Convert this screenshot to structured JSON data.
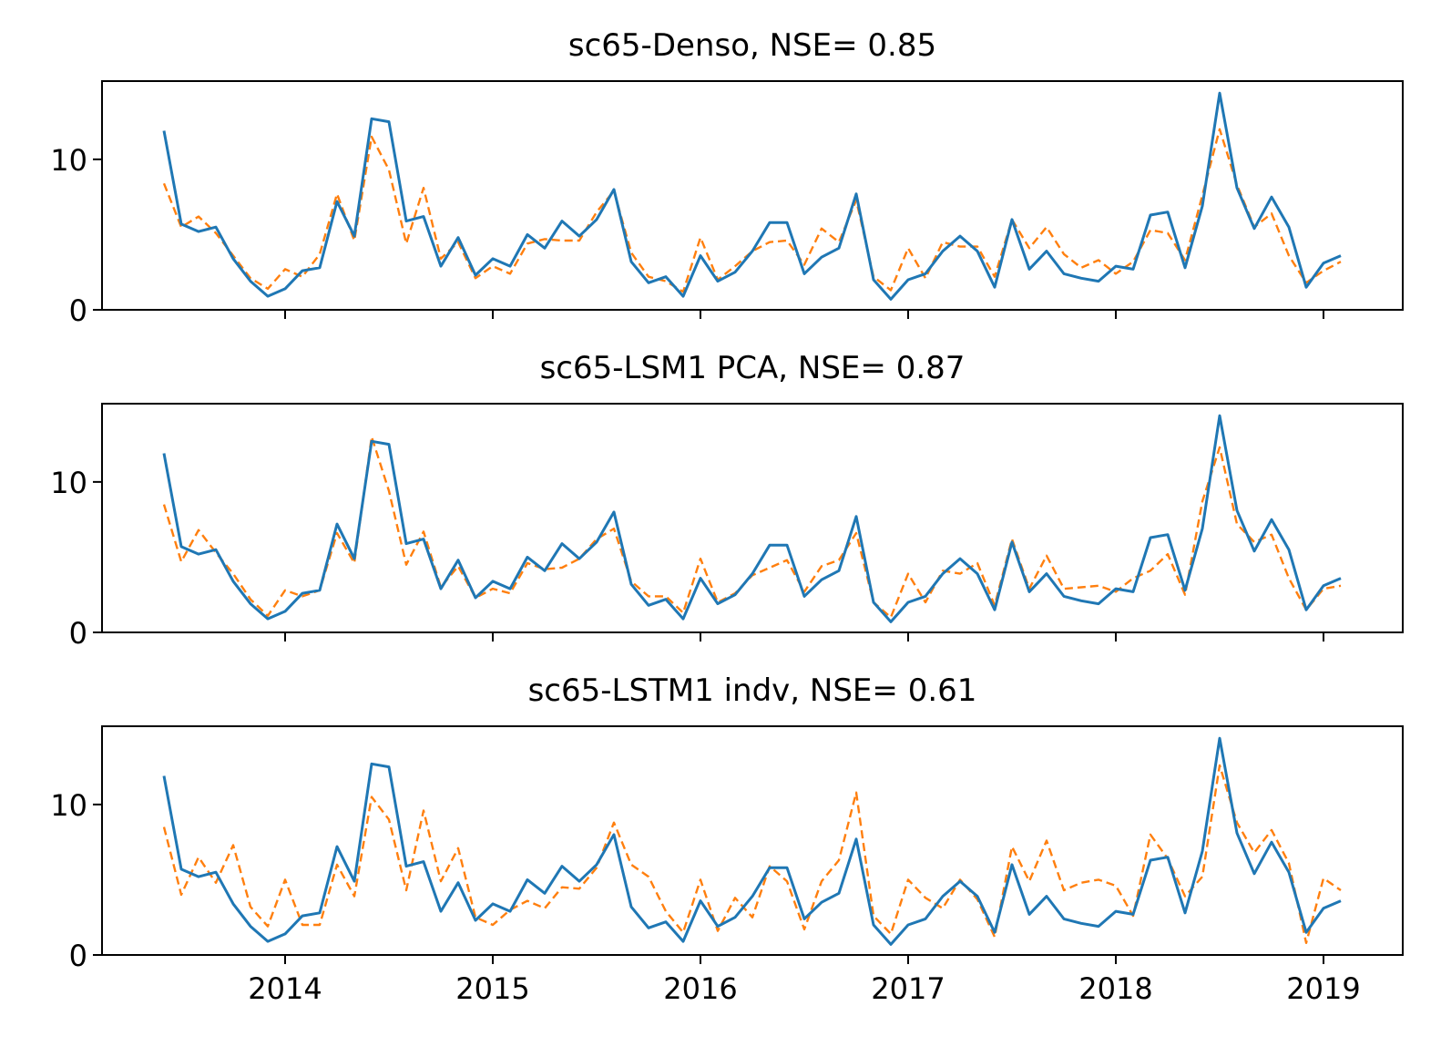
{
  "chart_data": {
    "type": "line",
    "x_start": "2013-06",
    "x_end": "2019-02",
    "x_tick_labels": [
      "2014",
      "2015",
      "2016",
      "2017",
      "2018",
      "2019"
    ],
    "y_ticks": [
      0,
      10
    ],
    "ylim": [
      0,
      15.2
    ],
    "grid": false,
    "observed": {
      "color": "#1f77b4",
      "values": [
        11.9,
        5.7,
        5.2,
        5.5,
        3.4,
        1.9,
        0.9,
        1.4,
        2.6,
        2.8,
        7.2,
        4.9,
        12.7,
        12.5,
        5.9,
        6.2,
        2.9,
        4.8,
        2.3,
        3.4,
        2.9,
        5.0,
        4.1,
        5.9,
        4.9,
        6.0,
        8.0,
        3.2,
        1.8,
        2.2,
        0.9,
        3.6,
        1.9,
        2.5,
        3.9,
        5.8,
        5.8,
        2.4,
        3.5,
        4.1,
        7.7,
        2.0,
        0.7,
        2.0,
        2.4,
        3.9,
        4.9,
        3.9,
        1.5,
        6.0,
        2.7,
        3.9,
        2.4,
        2.1,
        1.9,
        2.9,
        2.7,
        6.3,
        6.5,
        2.8,
        6.9,
        14.4,
        8.1,
        5.4,
        7.5,
        5.5,
        1.5,
        3.1,
        3.6
      ]
    },
    "panels": [
      {
        "title": "sc65-Denso, NSE= 0.85",
        "predicted": {
          "color": "#ff7f0e",
          "values": [
            8.4,
            5.5,
            6.2,
            5.1,
            3.6,
            2.1,
            1.4,
            2.7,
            2.2,
            3.7,
            7.7,
            4.6,
            11.5,
            9.3,
            4.4,
            8.1,
            3.4,
            4.5,
            2.1,
            2.9,
            2.4,
            4.4,
            4.7,
            4.6,
            4.6,
            6.5,
            7.9,
            3.8,
            2.2,
            1.9,
            1.2,
            4.8,
            2.0,
            2.9,
            3.9,
            4.5,
            4.6,
            3.0,
            5.4,
            4.5,
            7.3,
            2.2,
            1.3,
            4.1,
            2.1,
            4.5,
            4.2,
            4.2,
            2.2,
            6.0,
            4.1,
            5.5,
            3.7,
            2.8,
            3.3,
            2.4,
            3.2,
            5.3,
            5.1,
            3.3,
            7.6,
            12.0,
            8.3,
            5.5,
            6.4,
            3.6,
            1.8,
            2.6,
            3.2
          ]
        }
      },
      {
        "title": "sc65-LSM1 PCA, NSE= 0.87",
        "predicted": {
          "color": "#ff7f0e",
          "values": [
            8.5,
            4.7,
            6.8,
            5.3,
            3.9,
            2.2,
            1.1,
            2.8,
            2.4,
            2.8,
            6.6,
            4.6,
            13.0,
            9.4,
            4.5,
            6.7,
            3.0,
            4.4,
            2.3,
            2.9,
            2.6,
            4.6,
            4.2,
            4.3,
            4.9,
            6.2,
            6.9,
            3.4,
            2.4,
            2.4,
            1.3,
            4.9,
            2.0,
            2.6,
            3.8,
            4.3,
            4.8,
            2.7,
            4.4,
            4.8,
            6.6,
            2.0,
            1.0,
            3.9,
            2.0,
            4.1,
            3.9,
            4.6,
            1.8,
            6.2,
            2.9,
            5.1,
            2.9,
            3.0,
            3.1,
            2.7,
            3.6,
            4.1,
            5.2,
            2.5,
            8.7,
            12.3,
            7.2,
            6.0,
            6.5,
            3.6,
            1.5,
            2.9,
            3.1
          ]
        }
      },
      {
        "title": "sc65-LSTM1 indv, NSE= 0.61",
        "predicted": {
          "color": "#ff7f0e",
          "values": [
            8.5,
            4.0,
            6.5,
            4.8,
            7.3,
            3.2,
            1.9,
            5.0,
            2.0,
            2.0,
            6.0,
            3.9,
            10.5,
            9.0,
            4.3,
            9.6,
            4.9,
            7.1,
            2.5,
            2.0,
            3.0,
            3.6,
            3.1,
            4.5,
            4.4,
            5.8,
            8.8,
            6.0,
            5.2,
            2.9,
            1.5,
            5.0,
            1.6,
            3.8,
            2.5,
            5.9,
            4.9,
            1.7,
            4.9,
            6.3,
            10.8,
            2.6,
            1.4,
            5.0,
            3.8,
            3.1,
            5.0,
            3.7,
            1.2,
            7.2,
            4.9,
            7.6,
            4.3,
            4.8,
            5.0,
            4.6,
            2.6,
            8.0,
            6.4,
            3.9,
            5.2,
            12.6,
            8.8,
            6.8,
            8.3,
            6.1,
            0.8,
            5.1,
            4.3
          ]
        }
      }
    ]
  }
}
